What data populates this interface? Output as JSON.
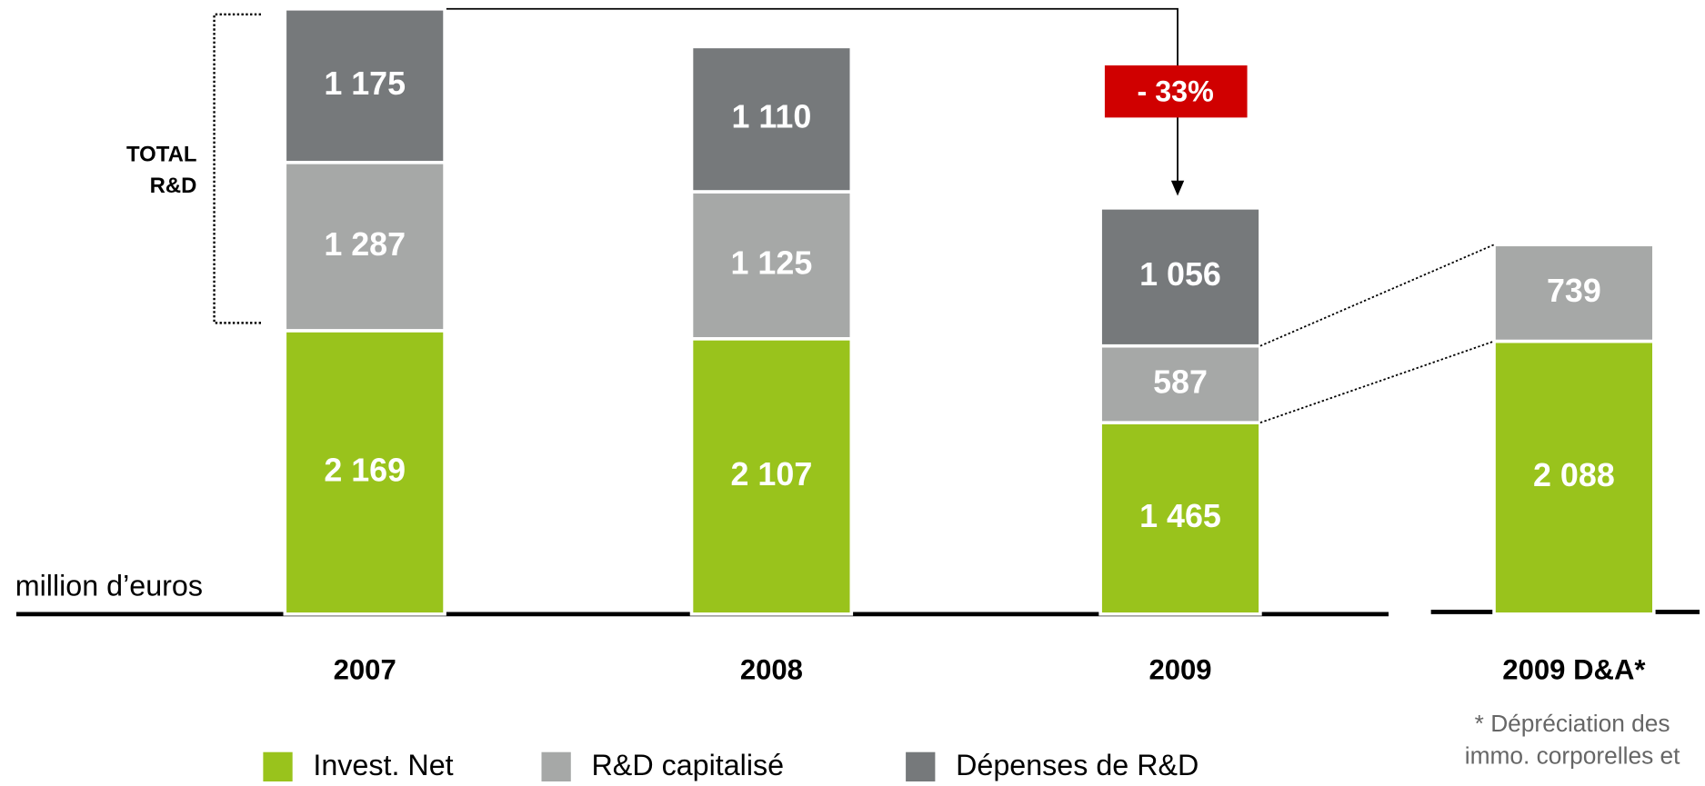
{
  "chart_data": {
    "type": "stacked_bar",
    "categories": [
      "2007",
      "2008",
      "2009",
      "2009 D&A*"
    ],
    "series": [
      {
        "name": "Invest. Net",
        "color": "#99c31c",
        "values": [
          2169,
          2107,
          1465,
          2088
        ],
        "value_labels": [
          "2 169",
          "2 107",
          "1 465",
          "2 088"
        ]
      },
      {
        "name": "R&D capitalisé",
        "color": "#a6a8a7",
        "values": [
          1287,
          1125,
          587,
          739
        ],
        "value_labels": [
          "1 287",
          "1 125",
          "587",
          "739"
        ]
      },
      {
        "name": "Dépenses de R&D",
        "color": "#76797b",
        "values": [
          1175,
          1110,
          1056,
          null
        ],
        "value_labels": [
          "1 175",
          "1 110",
          "1 056",
          null
        ]
      }
    ],
    "unit_label": "million d’euros",
    "bracket_label": [
      "TOTAL",
      "R&D"
    ],
    "change_annotation": "- 33%",
    "footnote": [
      "* Dépréciation des",
      "immo. corporelles et"
    ]
  }
}
